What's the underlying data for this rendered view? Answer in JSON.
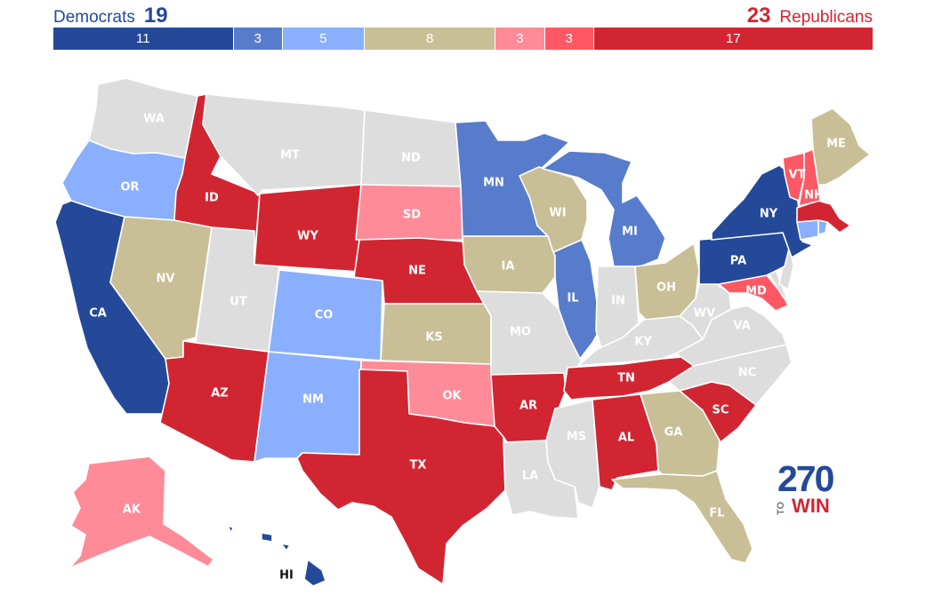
{
  "header": {
    "dem_label": "Democrats",
    "dem_total": "19",
    "rep_total": "23",
    "rep_label": "Republicans"
  },
  "colors": {
    "safe_dem": "#244999",
    "likely_dem": "#587ccc",
    "leans_dem": "#8aafff",
    "toss_up": "#c8bf97",
    "leans_rep": "#ff8b98",
    "likely_rep": "#ff5865",
    "safe_rep": "#d22532",
    "no_race": "#dddddd"
  },
  "bar_segments": [
    {
      "label": "11",
      "value": 11,
      "rating": "safe_dem"
    },
    {
      "label": "3",
      "value": 3,
      "rating": "likely_dem"
    },
    {
      "label": "5",
      "value": 5,
      "rating": "leans_dem"
    },
    {
      "label": "8",
      "value": 8,
      "rating": "toss_up"
    },
    {
      "label": "3",
      "value": 3,
      "rating": "leans_rep"
    },
    {
      "label": "3",
      "value": 3,
      "rating": "likely_rep"
    },
    {
      "label": "17",
      "value": 17,
      "rating": "safe_rep"
    }
  ],
  "states": [
    {
      "abbr": "WA",
      "rating": "no_race"
    },
    {
      "abbr": "OR",
      "rating": "leans_dem"
    },
    {
      "abbr": "CA",
      "rating": "safe_dem"
    },
    {
      "abbr": "ID",
      "rating": "safe_rep"
    },
    {
      "abbr": "NV",
      "rating": "toss_up"
    },
    {
      "abbr": "MT",
      "rating": "no_race"
    },
    {
      "abbr": "WY",
      "rating": "safe_rep"
    },
    {
      "abbr": "UT",
      "rating": "no_race"
    },
    {
      "abbr": "AZ",
      "rating": "safe_rep"
    },
    {
      "abbr": "CO",
      "rating": "leans_dem"
    },
    {
      "abbr": "NM",
      "rating": "leans_dem"
    },
    {
      "abbr": "ND",
      "rating": "no_race"
    },
    {
      "abbr": "SD",
      "rating": "leans_rep"
    },
    {
      "abbr": "NE",
      "rating": "safe_rep"
    },
    {
      "abbr": "KS",
      "rating": "toss_up"
    },
    {
      "abbr": "OK",
      "rating": "leans_rep"
    },
    {
      "abbr": "TX",
      "rating": "safe_rep"
    },
    {
      "abbr": "MN",
      "rating": "likely_dem"
    },
    {
      "abbr": "IA",
      "rating": "toss_up"
    },
    {
      "abbr": "MO",
      "rating": "no_race"
    },
    {
      "abbr": "AR",
      "rating": "safe_rep"
    },
    {
      "abbr": "LA",
      "rating": "no_race"
    },
    {
      "abbr": "WI",
      "rating": "toss_up"
    },
    {
      "abbr": "IL",
      "rating": "likely_dem"
    },
    {
      "abbr": "MI",
      "rating": "likely_dem"
    },
    {
      "abbr": "IN",
      "rating": "no_race"
    },
    {
      "abbr": "OH",
      "rating": "toss_up"
    },
    {
      "abbr": "KY",
      "rating": "no_race"
    },
    {
      "abbr": "TN",
      "rating": "safe_rep"
    },
    {
      "abbr": "MS",
      "rating": "no_race"
    },
    {
      "abbr": "AL",
      "rating": "safe_rep"
    },
    {
      "abbr": "GA",
      "rating": "toss_up"
    },
    {
      "abbr": "FL",
      "rating": "toss_up"
    },
    {
      "abbr": "SC",
      "rating": "safe_rep"
    },
    {
      "abbr": "NC",
      "rating": "no_race"
    },
    {
      "abbr": "VA",
      "rating": "no_race"
    },
    {
      "abbr": "WV",
      "rating": "no_race"
    },
    {
      "abbr": "MD",
      "rating": "likely_rep"
    },
    {
      "abbr": "DE",
      "rating": "no_race"
    },
    {
      "abbr": "NJ",
      "rating": "no_race"
    },
    {
      "abbr": "PA",
      "rating": "safe_dem"
    },
    {
      "abbr": "NY",
      "rating": "safe_dem"
    },
    {
      "abbr": "CT",
      "rating": "leans_dem"
    },
    {
      "abbr": "RI",
      "rating": "leans_dem"
    },
    {
      "abbr": "MA",
      "rating": "safe_rep"
    },
    {
      "abbr": "VT",
      "rating": "likely_rep"
    },
    {
      "abbr": "NH",
      "rating": "likely_rep"
    },
    {
      "abbr": "ME",
      "rating": "toss_up"
    },
    {
      "abbr": "AK",
      "rating": "leans_rep"
    },
    {
      "abbr": "HI",
      "rating": "safe_dem"
    }
  ],
  "logo": {
    "number": "270",
    "to": "TO",
    "win": "WIN"
  }
}
